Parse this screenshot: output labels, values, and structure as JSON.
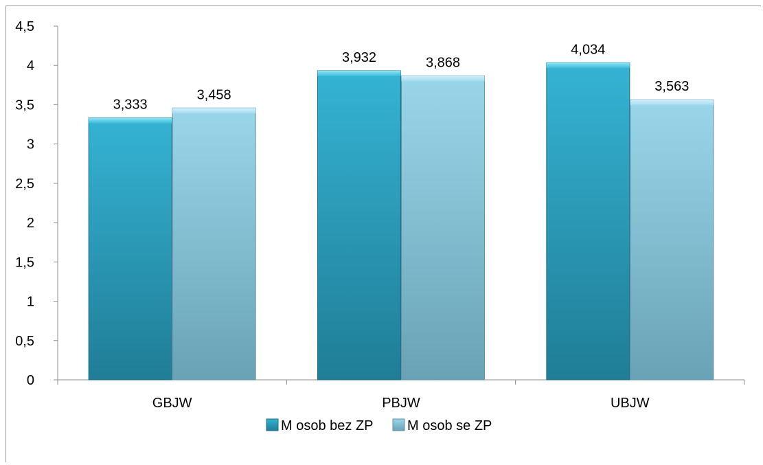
{
  "chart_data": {
    "type": "bar",
    "categories": [
      "GBJW",
      "PBJW",
      "UBJW"
    ],
    "series": [
      {
        "name": "M osob bez ZP",
        "values": [
          3.333,
          3.932,
          4.034
        ],
        "data_labels": [
          "3,333",
          "3,932",
          "4,034"
        ],
        "color": "#2aa4c4"
      },
      {
        "name": "M osob se ZP",
        "values": [
          3.458,
          3.868,
          3.563
        ],
        "data_labels": [
          "3,458",
          "3,868",
          "3,563"
        ],
        "color": "#8ccfe6"
      }
    ],
    "ylim": [
      0,
      4.5
    ],
    "yticks": [
      0,
      0.5,
      1,
      1.5,
      2,
      2.5,
      3,
      3.5,
      4,
      4.5
    ],
    "ytick_labels": [
      "0",
      "0,5",
      "1",
      "1,5",
      "2",
      "2,5",
      "3",
      "3,5",
      "4",
      "4,5"
    ],
    "grid": false,
    "legend_position": "bottom",
    "title": "",
    "xlabel": "",
    "ylabel": ""
  }
}
